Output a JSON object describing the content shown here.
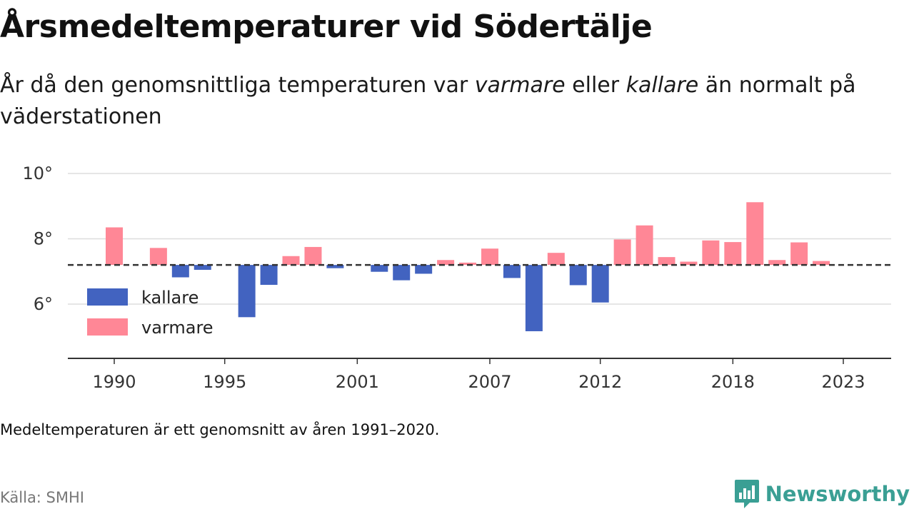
{
  "title": "Årsmedeltemperaturer vid Södertälje",
  "subtitle": {
    "part1": "År då den genomsnittliga temperaturen var ",
    "warm_word": "varmare",
    "part2": " eller ",
    "cold_word": "kallare",
    "part3": " än normalt på väderstationen"
  },
  "footnote": "Medeltemperaturen är ett genomsnitt av åren 1991–2020.",
  "source": "Källa: SMHI",
  "brand": {
    "name": "Newsworthy",
    "icon": "newsworthy-logo-icon",
    "color": "#3a9f94"
  },
  "colors": {
    "kallare": "#4263c0",
    "varmare": "#ff8796",
    "gridline": "#dddddd",
    "axis": "#333333",
    "normal_line": "#333333"
  },
  "chart_data": {
    "type": "bar",
    "baseline": 7.2,
    "ylim": [
      4.5,
      10.6
    ],
    "yticks": [
      {
        "value": 6,
        "label": "6°"
      },
      {
        "value": 8,
        "label": "8°"
      },
      {
        "value": 10,
        "label": "10°"
      }
    ],
    "xticks": [
      1990,
      1995,
      2001,
      2007,
      2012,
      2018,
      2023
    ],
    "grid": true,
    "legend": {
      "position": "lower-left",
      "entries": [
        {
          "key": "kallare",
          "label": "kallare"
        },
        {
          "key": "varmare",
          "label": "varmare"
        }
      ]
    },
    "series": [
      {
        "name": "kallare",
        "key": "kallare"
      },
      {
        "name": "varmare",
        "key": "varmare"
      }
    ],
    "x": [
      1990,
      1991,
      1992,
      1993,
      1994,
      1995,
      1996,
      1997,
      1998,
      1999,
      2000,
      2001,
      2002,
      2003,
      2004,
      2005,
      2006,
      2007,
      2008,
      2009,
      2010,
      2011,
      2012,
      2013,
      2014,
      2015,
      2016,
      2017,
      2018,
      2019,
      2020,
      2021,
      2022,
      2023
    ],
    "values": [
      8.35,
      null,
      7.72,
      6.82,
      7.05,
      null,
      5.6,
      6.59,
      7.47,
      7.75,
      7.1,
      null,
      6.99,
      6.73,
      6.93,
      7.35,
      7.27,
      7.7,
      6.8,
      5.17,
      7.57,
      6.58,
      6.05,
      7.98,
      8.41,
      7.44,
      7.3,
      7.95,
      7.9,
      9.12,
      7.35,
      7.89,
      7.32,
      null
    ]
  }
}
